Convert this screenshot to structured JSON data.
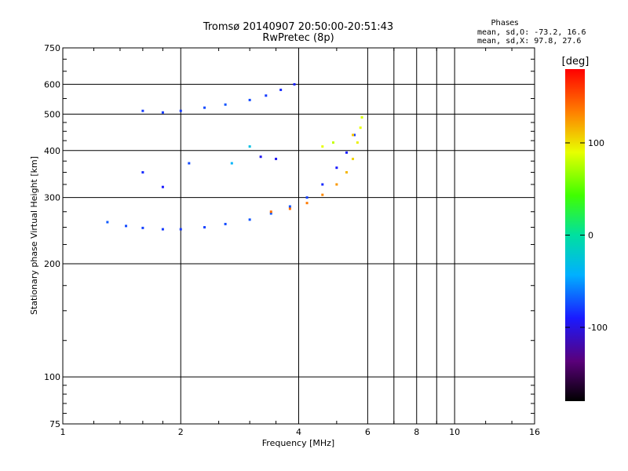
{
  "chart_data": {
    "type": "scatter",
    "title": "Tromsø 20140907 20:50:00-20:51:43",
    "subtitle": "RwPretec (8p)",
    "xlabel": "Frequency [MHz]",
    "ylabel": "Stationary phase Virtual Height [km]",
    "x_scale": "log",
    "y_scale": "log",
    "xlim": [
      1,
      16
    ],
    "ylim": [
      75,
      750
    ],
    "x_ticks": [
      "1",
      "2",
      "4",
      "6",
      "8",
      "10",
      "16"
    ],
    "x_tick_values": [
      1,
      2,
      4,
      6,
      8,
      10,
      16
    ],
    "y_ticks": [
      "75",
      "100",
      "200",
      "300",
      "400",
      "500",
      "600",
      "750"
    ],
    "y_tick_values": [
      75,
      100,
      200,
      300,
      400,
      500,
      600,
      750
    ],
    "grid": true,
    "annotation": {
      "title": "Phases",
      "line1": "mean, sd,O: -73.2, 16.6",
      "line2": "mean, sd,X:  97.8, 27.6"
    },
    "colorbar": {
      "label": "[deg]",
      "range": [
        -180,
        180
      ],
      "ticks": [
        "100",
        "0",
        "-100"
      ],
      "tick_values": [
        100,
        0,
        -100
      ]
    },
    "series": [
      {
        "values": [
          {
            "x": 1.3,
            "y": 258,
            "phase": -70
          },
          {
            "x": 1.45,
            "y": 252,
            "phase": -75
          },
          {
            "x": 1.6,
            "y": 249,
            "phase": -78
          },
          {
            "x": 1.8,
            "y": 247,
            "phase": -80
          },
          {
            "x": 2.0,
            "y": 247,
            "phase": -80
          },
          {
            "x": 2.3,
            "y": 250,
            "phase": -78
          },
          {
            "x": 2.6,
            "y": 255,
            "phase": -75
          },
          {
            "x": 3.0,
            "y": 262,
            "phase": -72
          },
          {
            "x": 3.4,
            "y": 272,
            "phase": -70
          },
          {
            "x": 3.8,
            "y": 284,
            "phase": -72
          },
          {
            "x": 4.2,
            "y": 300,
            "phase": -78
          },
          {
            "x": 4.6,
            "y": 325,
            "phase": -85
          },
          {
            "x": 5.0,
            "y": 360,
            "phase": -90
          },
          {
            "x": 5.3,
            "y": 395,
            "phase": -88
          },
          {
            "x": 5.55,
            "y": 440,
            "phase": -80
          }
        ]
      },
      {
        "values": [
          {
            "x": 3.4,
            "y": 275,
            "phase": 140
          },
          {
            "x": 3.8,
            "y": 280,
            "phase": 140
          },
          {
            "x": 4.2,
            "y": 290,
            "phase": 135
          },
          {
            "x": 4.6,
            "y": 305,
            "phase": 130
          },
          {
            "x": 5.0,
            "y": 325,
            "phase": 125
          },
          {
            "x": 5.3,
            "y": 350,
            "phase": 115
          },
          {
            "x": 5.5,
            "y": 380,
            "phase": 105
          },
          {
            "x": 5.65,
            "y": 420,
            "phase": 95
          },
          {
            "x": 5.75,
            "y": 460,
            "phase": 90
          },
          {
            "x": 5.8,
            "y": 490,
            "phase": 85
          }
        ]
      },
      {
        "values": [
          {
            "x": 1.6,
            "y": 510,
            "phase": -80
          },
          {
            "x": 1.8,
            "y": 505,
            "phase": -80
          },
          {
            "x": 2.0,
            "y": 510,
            "phase": -80
          },
          {
            "x": 2.3,
            "y": 520,
            "phase": -75
          },
          {
            "x": 2.6,
            "y": 530,
            "phase": -72
          },
          {
            "x": 3.0,
            "y": 545,
            "phase": -75
          },
          {
            "x": 3.3,
            "y": 560,
            "phase": -80
          },
          {
            "x": 3.6,
            "y": 580,
            "phase": -85
          },
          {
            "x": 3.9,
            "y": 600,
            "phase": -88
          }
        ]
      },
      {
        "values": [
          {
            "x": 1.6,
            "y": 350,
            "phase": -85
          },
          {
            "x": 1.8,
            "y": 320,
            "phase": -90
          },
          {
            "x": 2.1,
            "y": 370,
            "phase": -75
          },
          {
            "x": 2.7,
            "y": 370,
            "phase": -40
          },
          {
            "x": 3.0,
            "y": 410,
            "phase": -30
          },
          {
            "x": 3.2,
            "y": 385,
            "phase": -95
          },
          {
            "x": 3.5,
            "y": 380,
            "phase": -95
          },
          {
            "x": 4.6,
            "y": 410,
            "phase": 90
          },
          {
            "x": 4.9,
            "y": 420,
            "phase": 80
          },
          {
            "x": 5.5,
            "y": 440,
            "phase": 110
          }
        ]
      }
    ]
  }
}
